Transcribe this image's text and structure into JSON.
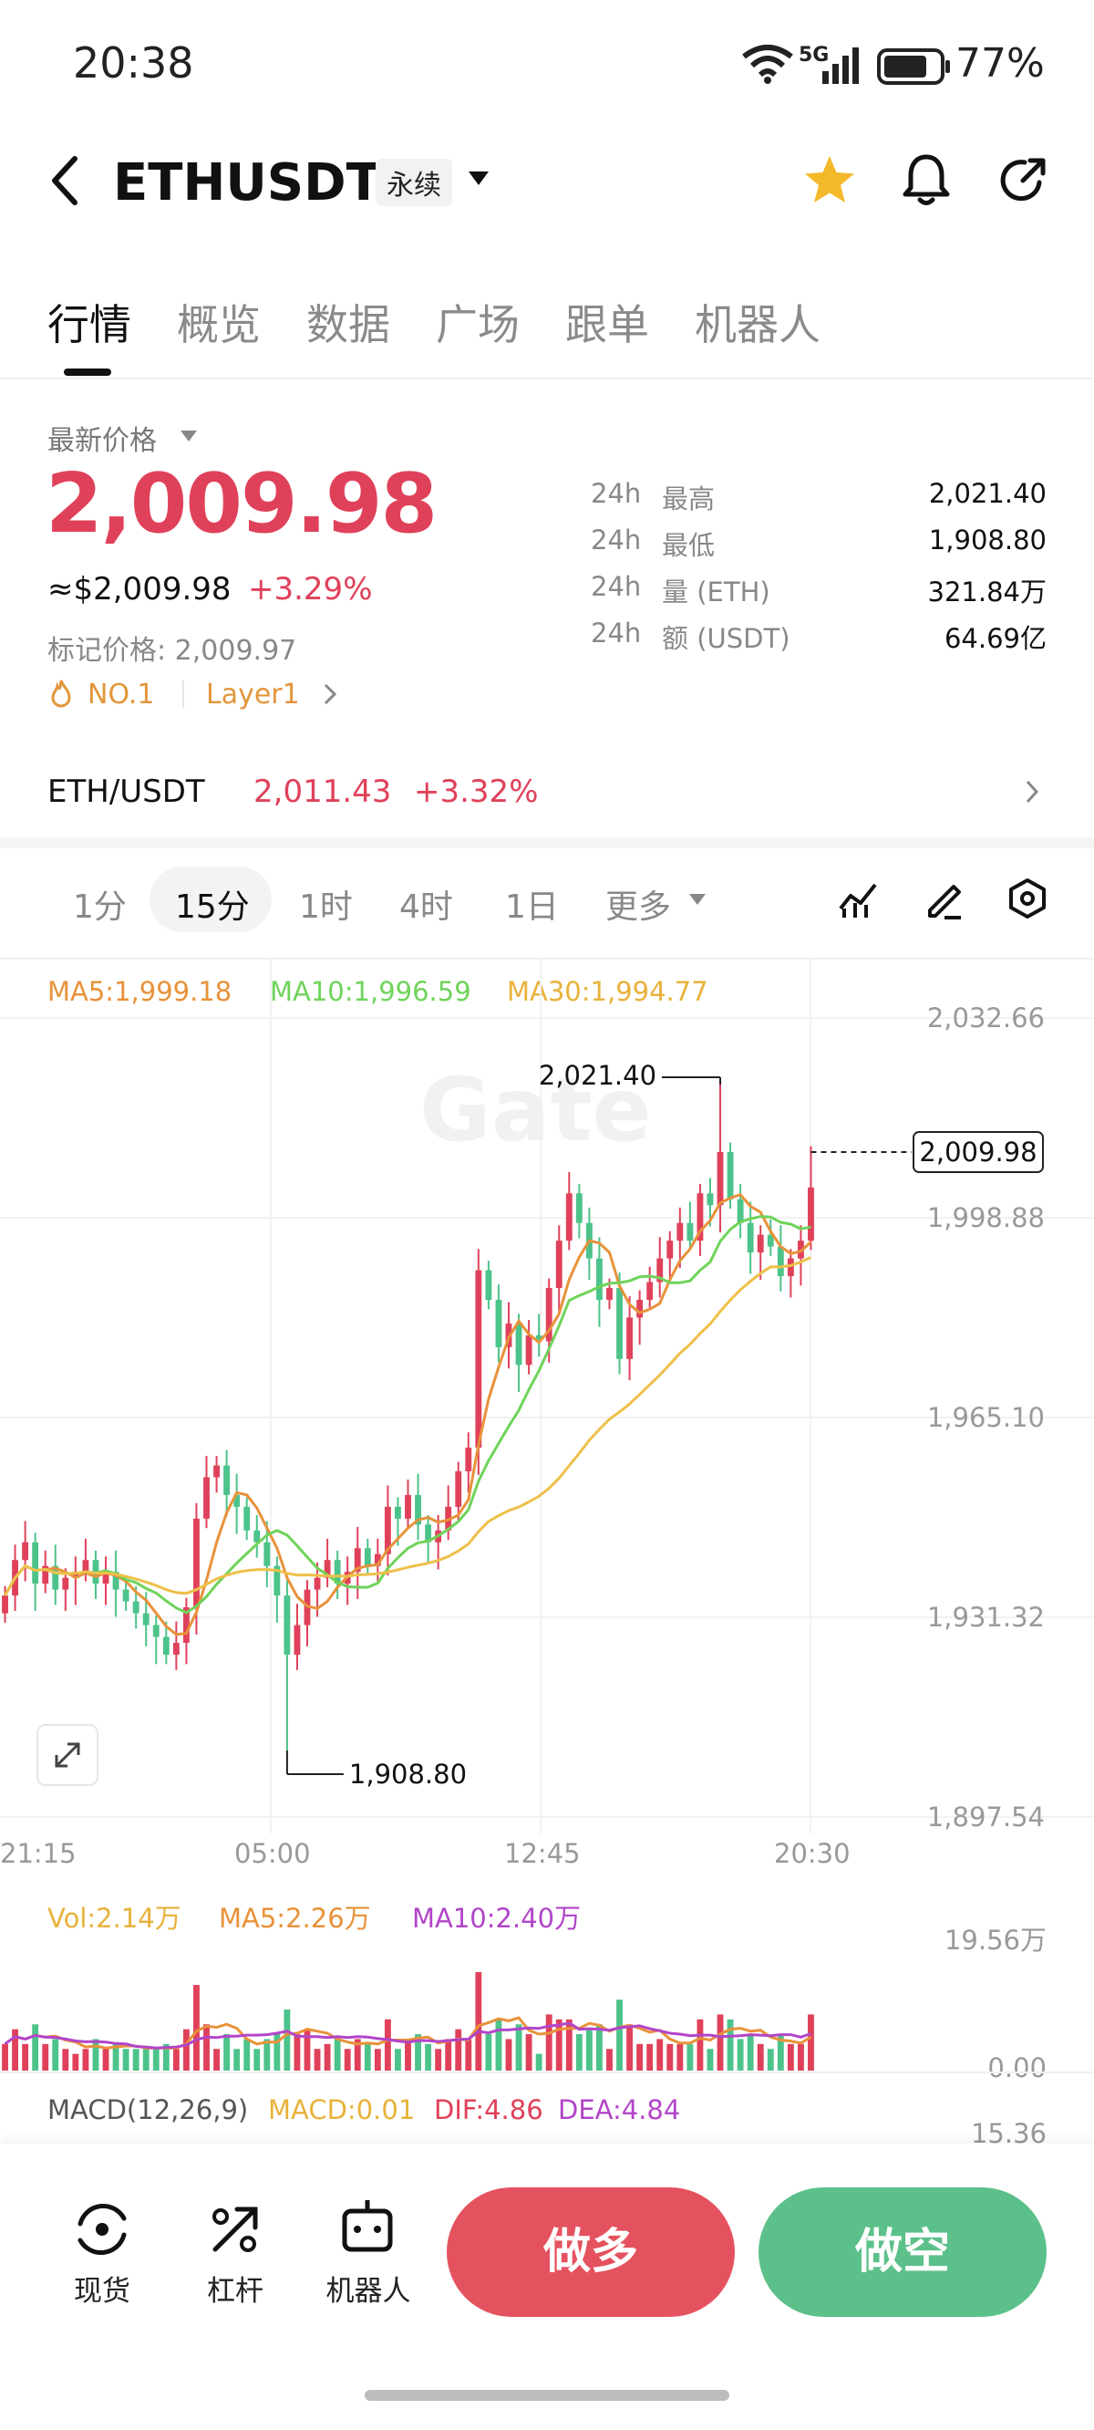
{
  "status_bar": {
    "time": "20:38",
    "network": "5G",
    "battery": "77%"
  },
  "header": {
    "symbol": "ETHUSDT",
    "contract_type": "永续"
  },
  "tabs": [
    "行情",
    "概览",
    "数据",
    "广场",
    "跟单",
    "机器人"
  ],
  "price": {
    "label": "最新价格",
    "last": "2,009.98",
    "approx": "≈$2,009.98",
    "change": "+3.29%",
    "mark_label": "标记价格: 2,009.97",
    "tag_rank": "NO.1",
    "tag_sector": "Layer1"
  },
  "stats": [
    {
      "period": "24h",
      "name": "最高",
      "value": "2,021.40"
    },
    {
      "period": "24h",
      "name": "最低",
      "value": "1,908.80"
    },
    {
      "period": "24h",
      "name": "量 (ETH)",
      "value": "321.84万"
    },
    {
      "period": "24h",
      "name": "额 (USDT)",
      "value": "64.69亿"
    }
  ],
  "spot": {
    "pair": "ETH/USDT",
    "price": "2,011.43",
    "change": "+3.32%"
  },
  "timeframes": {
    "items": [
      "1分",
      "15分",
      "1时",
      "4时",
      "1日"
    ],
    "selected": "15分",
    "more": "更多"
  },
  "ma": {
    "ma5": "MA5:1,999.18",
    "ma10": "MA10:1,996.59",
    "ma30": "MA30:1,994.77"
  },
  "volume": {
    "vol": "Vol:2.14万",
    "ma5": "MA5:2.26万",
    "ma10": "MA10:2.40万",
    "axis_max": "19.56万",
    "axis_min": "0.00"
  },
  "macd": {
    "label": "MACD(12,26,9)",
    "macd": "MACD:0.01",
    "dif": "DIF:4.86",
    "dea": "DEA:4.84",
    "axis": "15.36"
  },
  "chart_data": {
    "type": "candlestick",
    "y_ticks": [
      "2,032.66",
      "1,998.88",
      "1,965.10",
      "1,931.32",
      "1,897.54"
    ],
    "ylim": [
      1897.54,
      2032.66
    ],
    "x_ticks": [
      "21:15",
      "05:00",
      "12:45",
      "20:30"
    ],
    "high_label": "2,021.40",
    "low_label": "1,908.80",
    "last_label": "2,009.98",
    "high": 2021.4,
    "low": 1908.8,
    "last": 2009.98,
    "colors": {
      "up": "#e0415a",
      "down": "#4cc38a",
      "ma5": "#e8923a",
      "ma10": "#6fd35a",
      "ma30": "#eec04a"
    },
    "closes": [
      1935,
      1941,
      1944,
      1937,
      1940,
      1936,
      1938,
      1939,
      1941,
      1937,
      1939,
      1936,
      1934,
      1932,
      1930,
      1928,
      1925,
      1927,
      1933,
      1948,
      1955,
      1957,
      1952,
      1950,
      1946,
      1944,
      1940,
      1935,
      1925,
      1930,
      1936,
      1938,
      1941,
      1937,
      1939,
      1943,
      1940,
      1942,
      1950,
      1948,
      1952,
      1947,
      1944,
      1946,
      1950,
      1956,
      1960,
      1990,
      1985,
      1977,
      1981,
      1974,
      1979,
      1978,
      1987,
      1995,
      2003,
      1998,
      1992,
      1985,
      1987,
      1975,
      1982,
      1985,
      1988,
      1992,
      1995,
      1998,
      1995,
      2003,
      2001,
      2010,
      2002,
      1998,
      1993,
      1996,
      1994,
      1989,
      1992,
      1995,
      2004
    ]
  },
  "bottom_nav": {
    "spot": "现货",
    "leverage": "杠杆",
    "bot": "机器人",
    "long": "做多",
    "short": "做空"
  }
}
